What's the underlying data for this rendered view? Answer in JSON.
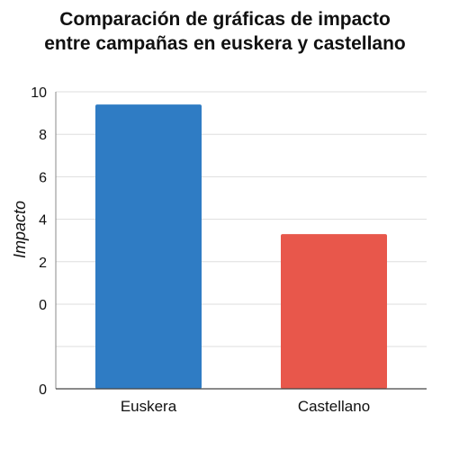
{
  "chart_data": {
    "type": "bar",
    "title_lines": [
      "Comparación de gráficas de impacto",
      "entre campañas en euskera y castellano"
    ],
    "xlabel": "",
    "ylabel": "Impacto",
    "categories": [
      "Euskera",
      "Castellano"
    ],
    "values": [
      9.4,
      3.3
    ],
    "colors": [
      "#2f7cc4",
      "#e8574b"
    ],
    "y_tick_labels": [
      "10",
      "8",
      "6",
      "4",
      "2",
      "0",
      "0"
    ],
    "ylim": [
      0,
      10
    ],
    "grid": true,
    "legend": "none"
  }
}
